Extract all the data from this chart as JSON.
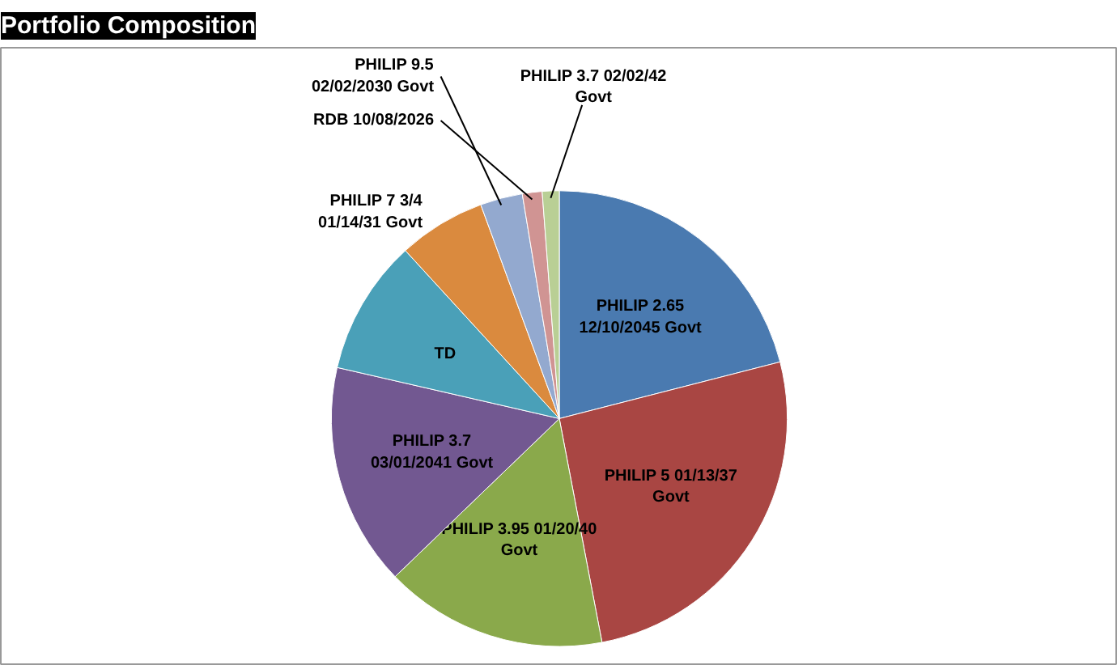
{
  "chart_data": {
    "type": "pie",
    "title": "Portfolio Composition",
    "categories": [
      "PHILIP 2.65 12/10/2045 Govt",
      "PHILIP 5 01/13/37 Govt",
      "PHILIP 3.95 01/20/40 Govt",
      "PHILIP 3.7 03/01/2041 Govt",
      "TD",
      "PHILIP 7 3/4 01/14/31 Govt",
      "PHILIP 9.5 02/02/2030 Govt",
      "RDB 10/08/2026",
      "PHILIP 3.7 02/02/42 Govt"
    ],
    "values": [
      21,
      26,
      15.8,
      15.8,
      9.6,
      6.2,
      3.0,
      1.4,
      1.2
    ],
    "colors": [
      "#4a7ab0",
      "#a94643",
      "#8aa94b",
      "#725891",
      "#4aa0b8",
      "#da8a3e",
      "#93a9cf",
      "#d09493",
      "#b9cf95"
    ]
  }
}
